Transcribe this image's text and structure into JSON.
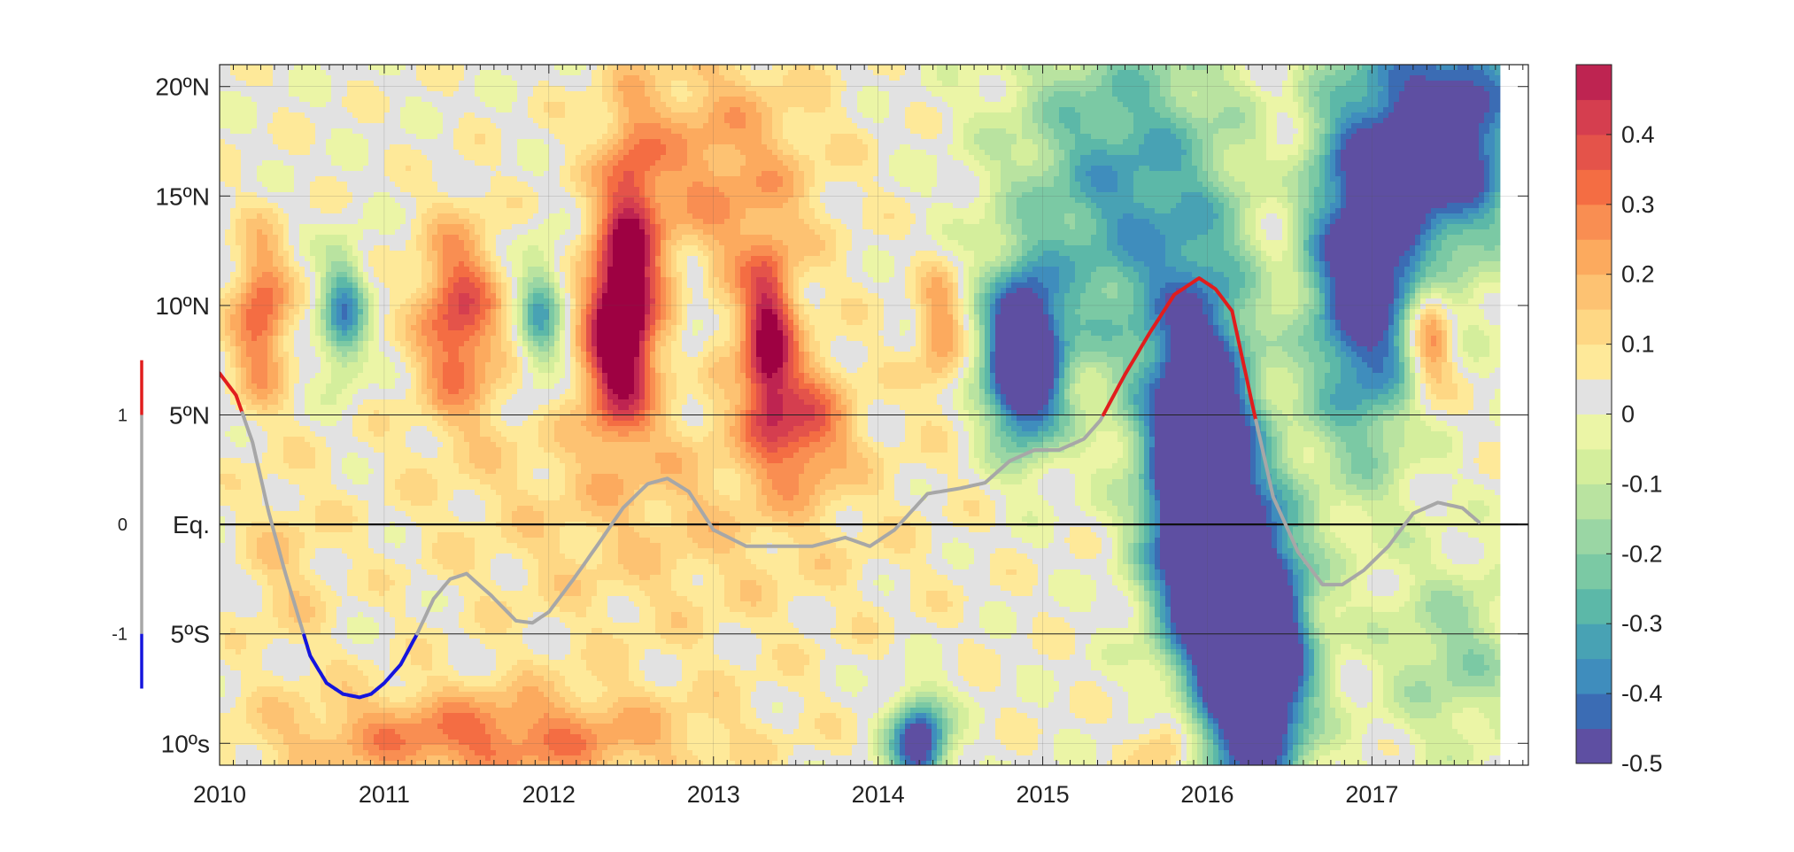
{
  "chart_data": {
    "type": "heatmap",
    "title": "",
    "xlabel": "",
    "ylabel": "",
    "x_range": [
      2010.0,
      2017.95
    ],
    "y_range": [
      -11,
      21
    ],
    "x_ticks": [
      {
        "value": 2010,
        "label": "2010"
      },
      {
        "value": 2011,
        "label": "2011"
      },
      {
        "value": 2012,
        "label": "2012"
      },
      {
        "value": 2013,
        "label": "2013"
      },
      {
        "value": 2014,
        "label": "2014"
      },
      {
        "value": 2015,
        "label": "2015"
      },
      {
        "value": 2016,
        "label": "2016"
      },
      {
        "value": 2017,
        "label": "2017"
      }
    ],
    "y_ticks": [
      {
        "value": 20,
        "label": "20ºN"
      },
      {
        "value": 15,
        "label": "15ºN"
      },
      {
        "value": 10,
        "label": "10ºN"
      },
      {
        "value": 5,
        "label": "5ºN"
      },
      {
        "value": 0,
        "label": "Eq."
      },
      {
        "value": -5,
        "label": "5ºS"
      },
      {
        "value": -10,
        "label": "10ºs"
      }
    ],
    "colorbar": {
      "range": [
        -0.5,
        0.5
      ],
      "step": 0.05,
      "ticks": [
        {
          "value": 0.4,
          "label": "0.4"
        },
        {
          "value": 0.3,
          "label": "0.3"
        },
        {
          "value": 0.2,
          "label": "0.2"
        },
        {
          "value": 0.1,
          "label": "0.1"
        },
        {
          "value": 0,
          "label": "0"
        },
        {
          "value": -0.1,
          "label": "-0.1"
        },
        {
          "value": -0.2,
          "label": "-0.2"
        },
        {
          "value": -0.3,
          "label": "-0.3"
        },
        {
          "value": -0.4,
          "label": "-0.4"
        },
        {
          "value": -0.5,
          "label": "-0.5"
        }
      ],
      "colors": [
        "#5e4fa2",
        "#3b6cb4",
        "#3f8dbd",
        "#48a2b4",
        "#5cb8a8",
        "#7bc9a4",
        "#9ad6a4",
        "#b9e3a0",
        "#d4ee9c",
        "#ebf5a6",
        "#e2e2e2",
        "#fee999",
        "#fed784",
        "#fdc272",
        "#fcaa5e",
        "#f98e52",
        "#f46d43",
        "#e4534a",
        "#d53e4f",
        "#be2451",
        "#9e0142"
      ]
    },
    "anomaly_blobs": [
      {
        "t": 2010.25,
        "lat": 9.5,
        "st": 0.12,
        "sl": 2.6,
        "v": 0.33
      },
      {
        "t": 2010.75,
        "lat": 9.6,
        "st": 0.1,
        "sl": 2.0,
        "v": -0.38
      },
      {
        "t": 2011.45,
        "lat": 9.5,
        "st": 0.17,
        "sl": 3.0,
        "v": 0.36
      },
      {
        "t": 2011.95,
        "lat": 9.5,
        "st": 0.1,
        "sl": 2.2,
        "v": -0.32
      },
      {
        "t": 2012.42,
        "lat": 8.8,
        "st": 0.14,
        "sl": 3.0,
        "v": 0.55
      },
      {
        "t": 2012.5,
        "lat": 13.5,
        "st": 0.12,
        "sl": 4.0,
        "v": 0.25
      },
      {
        "t": 2012.88,
        "lat": 9.5,
        "st": 0.07,
        "sl": 2.4,
        "v": -0.12
      },
      {
        "t": 2013.33,
        "lat": 8.3,
        "st": 0.11,
        "sl": 2.8,
        "v": 0.45
      },
      {
        "t": 2013.0,
        "lat": 16.0,
        "st": 0.45,
        "sl": 4.0,
        "v": 0.22
      },
      {
        "t": 2013.55,
        "lat": 4.5,
        "st": 0.18,
        "sl": 2.0,
        "v": 0.28
      },
      {
        "t": 2014.38,
        "lat": 9.0,
        "st": 0.1,
        "sl": 2.0,
        "v": 0.24
      },
      {
        "t": 2012.7,
        "lat": 1.2,
        "st": 1.0,
        "sl": 5.0,
        "v": 0.12
      },
      {
        "t": 2011.6,
        "lat": -9.8,
        "st": 0.9,
        "sl": 1.6,
        "v": 0.28
      },
      {
        "t": 2010.4,
        "lat": -2.0,
        "st": 0.2,
        "sl": 3.0,
        "v": 0.1
      },
      {
        "t": 2014.25,
        "lat": -10.0,
        "st": 0.12,
        "sl": 1.5,
        "v": -0.6
      },
      {
        "t": 2015.75,
        "lat": -10.0,
        "st": 0.12,
        "sl": 1.5,
        "v": 0.2
      },
      {
        "t": 2014.88,
        "lat": 7.5,
        "st": 0.16,
        "sl": 2.6,
        "v": -0.8
      },
      {
        "t": 2015.5,
        "lat": 15.0,
        "st": 0.5,
        "sl": 6.0,
        "v": -0.35
      },
      {
        "t": 2015.95,
        "lat": 2.0,
        "st": 0.22,
        "sl": 5.5,
        "v": -0.9
      },
      {
        "t": 2016.3,
        "lat": -6.0,
        "st": 0.22,
        "sl": 4.5,
        "v": -0.9
      },
      {
        "t": 2016.45,
        "lat": 15.0,
        "st": 0.1,
        "sl": 4.0,
        "v": 0.08
      },
      {
        "t": 2016.95,
        "lat": 12.0,
        "st": 0.25,
        "sl": 6.0,
        "v": -0.6
      },
      {
        "t": 2017.5,
        "lat": 18.0,
        "st": 0.3,
        "sl": 4.0,
        "v": -0.6
      },
      {
        "t": 2017.35,
        "lat": 8.5,
        "st": 0.1,
        "sl": 2.0,
        "v": 0.35
      },
      {
        "t": 2017.5,
        "lat": -6.0,
        "st": 0.3,
        "sl": 3.0,
        "v": -0.2
      }
    ],
    "index_line": {
      "left_axis_ticks": [
        {
          "value": 1,
          "label": "1"
        },
        {
          "value": 0,
          "label": "0"
        },
        {
          "value": -1,
          "label": "-1"
        }
      ],
      "range": [
        -1.5,
        1.5
      ],
      "threshold": 1.0,
      "positive_color": "#e11d1d",
      "negative_color": "#1515dd",
      "neutral_color": "#a7a7a7",
      "x": [
        2010.0,
        2010.1,
        2010.2,
        2010.3,
        2010.4,
        2010.5,
        2010.55,
        2010.65,
        2010.75,
        2010.85,
        2010.92,
        2011.0,
        2011.1,
        2011.2,
        2011.3,
        2011.4,
        2011.5,
        2011.65,
        2011.8,
        2011.9,
        2012.0,
        2012.15,
        2012.3,
        2012.45,
        2012.6,
        2012.72,
        2012.85,
        2013.0,
        2013.2,
        2013.4,
        2013.6,
        2013.8,
        2013.95,
        2014.1,
        2014.3,
        2014.5,
        2014.65,
        2014.8,
        2014.95,
        2015.1,
        2015.25,
        2015.35,
        2015.5,
        2015.65,
        2015.8,
        2015.95,
        2016.05,
        2016.15,
        2016.28,
        2016.4,
        2016.55,
        2016.7,
        2016.82,
        2016.95,
        2017.1,
        2017.25,
        2017.4,
        2017.55,
        2017.65
      ],
      "y": [
        1.38,
        1.18,
        0.75,
        0.1,
        -0.45,
        -0.95,
        -1.2,
        -1.45,
        -1.55,
        -1.58,
        -1.55,
        -1.45,
        -1.28,
        -1.0,
        -0.68,
        -0.5,
        -0.45,
        -0.65,
        -0.88,
        -0.9,
        -0.8,
        -0.5,
        -0.18,
        0.15,
        0.37,
        0.42,
        0.3,
        -0.05,
        -0.2,
        -0.2,
        -0.2,
        -0.12,
        -0.2,
        -0.05,
        0.28,
        0.33,
        0.38,
        0.58,
        0.68,
        0.68,
        0.78,
        0.95,
        1.37,
        1.75,
        2.1,
        2.25,
        2.15,
        1.95,
        1.05,
        0.25,
        -0.25,
        -0.55,
        -0.55,
        -0.42,
        -0.2,
        0.1,
        0.2,
        0.15,
        0.02
      ]
    }
  }
}
